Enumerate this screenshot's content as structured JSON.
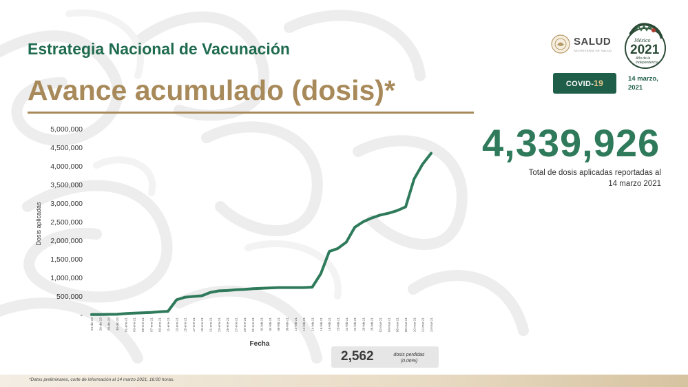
{
  "header": {
    "title": "Estrategia Nacional de Vacunación",
    "subtitle": "Avance acumulado (dosis)*"
  },
  "logos": {
    "salud": "SALUD",
    "salud_sub": "SECRETARÍA DE SALUD",
    "mexico_top": "México",
    "mexico_year": "2021",
    "mexico_tagline": "Año de la Independencia"
  },
  "badge": {
    "prefix": "COVID-",
    "number": "19"
  },
  "report_date": {
    "line1": "14 marzo,",
    "line2": "2021"
  },
  "total": {
    "value": "4,339,926",
    "caption_line1": "Total de dosis aplicadas reportadas al",
    "caption_line2": "14 marzo 2021"
  },
  "lost_doses": {
    "value": "2,562",
    "label_line1": "dosis perdidas",
    "label_line2": "(0.06%)"
  },
  "footnote": "*Datos preliminares, corte de información al 14 marzo 2021, 16:00 horas.",
  "colors": {
    "line": "#2e7a5b",
    "title_green": "#1f6b4f",
    "gold": "#a88a5a",
    "badge": "#1f5e48"
  },
  "chart_data": {
    "type": "line",
    "xlabel": "Fecha",
    "ylabel": "Dosis aplicadas",
    "ylim": [
      0,
      5000000
    ],
    "yticks": [
      {
        "value": 0,
        "label": "-"
      },
      {
        "value": 500000,
        "label": "500,000"
      },
      {
        "value": 1000000,
        "label": "1,000,000"
      },
      {
        "value": 1500000,
        "label": "1,500,000"
      },
      {
        "value": 2000000,
        "label": "2,000,000"
      },
      {
        "value": 2500000,
        "label": "2,500,000"
      },
      {
        "value": 3000000,
        "label": "3,000,000"
      },
      {
        "value": 3500000,
        "label": "3,500,000"
      },
      {
        "value": 4000000,
        "label": "4,000,000"
      },
      {
        "value": 4500000,
        "label": "4,500,000"
      },
      {
        "value": 5000000,
        "label": "5,000,000"
      }
    ],
    "grid": false,
    "categories": [
      "24-dic-20",
      "26-dic-20",
      "28-dic-20",
      "30-dic-20",
      "01-ene-21",
      "03-ene-21",
      "05-ene-21",
      "07-ene-21",
      "09-ene-21",
      "11-ene-21",
      "13-ene-21",
      "15-ene-21",
      "17-ene-21",
      "19-ene-21",
      "21-ene-21",
      "23-ene-21",
      "25-ene-21",
      "27-ene-21",
      "29-ene-21",
      "31-ene-21",
      "02-feb-21",
      "04-feb-21",
      "06-feb-21",
      "08-feb-21",
      "10-feb-21",
      "12-feb-21",
      "14-feb-21",
      "16-feb-21",
      "18-feb-21",
      "20-feb-21",
      "22-feb-21",
      "24-feb-21",
      "26-feb-21",
      "28-feb-21",
      "02-mar-21",
      "04-mar-21",
      "06-mar-21",
      "08-mar-21",
      "10-mar-21",
      "12-mar-21",
      "14-mar-21"
    ],
    "series": [
      {
        "values": [
          2924,
          6000,
          9000,
          12000,
          30000,
          42000,
          50000,
          60000,
          80000,
          90000,
          400000,
          470000,
          490000,
          510000,
          600000,
          640000,
          650000,
          670000,
          680000,
          700000,
          710000,
          720000,
          730000,
          730000,
          730000,
          730000,
          740000,
          1100000,
          1700000,
          1780000,
          1950000,
          2350000,
          2500000,
          2600000,
          2680000,
          2730000,
          2800000,
          2900000,
          3650000,
          4050000,
          4339926
        ]
      }
    ]
  }
}
